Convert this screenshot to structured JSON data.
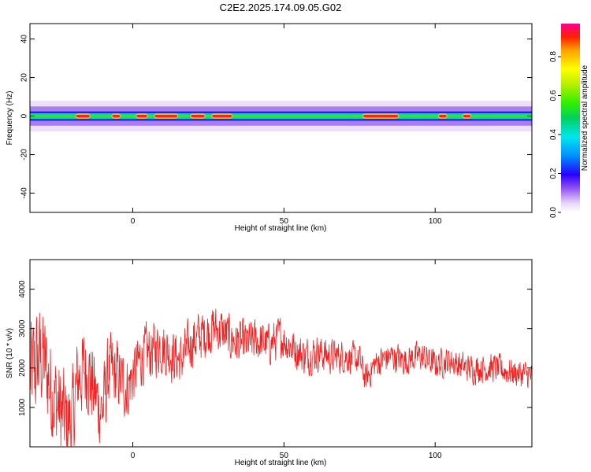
{
  "title": "C2E2.2025.174.09.05.G02",
  "chart_data": [
    {
      "type": "heatmap",
      "xlabel": "Height of straight line (km)",
      "ylabel": "Frequency (Hz)",
      "xlim": [
        -34,
        132
      ],
      "ylim": [
        -50,
        48
      ],
      "xticks": [
        0,
        50,
        100
      ],
      "yticks": [
        -40,
        -20,
        0,
        20,
        40
      ],
      "colorbar": {
        "label": "Normalized spectral amplitude",
        "range": [
          0,
          0.97
        ],
        "ticks": [
          0.0,
          0.2,
          0.4,
          0.6,
          0.8
        ]
      },
      "band": {
        "center_hz": 0,
        "core_halfwidth_hz": 1.5,
        "outer_halfwidth_hz": 5,
        "peak_segments_km": [
          [
            -19,
            -14
          ],
          [
            -7,
            -4
          ],
          [
            1,
            5
          ],
          [
            7,
            15
          ],
          [
            19,
            24
          ],
          [
            26,
            33
          ],
          [
            76,
            88
          ],
          [
            101,
            104
          ],
          [
            109,
            112
          ]
        ]
      }
    },
    {
      "type": "line",
      "xlabel": "Height of straight line (km)",
      "ylabel": "SNR (10 * v/v)",
      "xlim": [
        -34,
        132
      ],
      "ylim": [
        0,
        4750
      ],
      "xticks": [
        0,
        50,
        100
      ],
      "yticks": [
        1000,
        2000,
        3000,
        4000
      ],
      "color": "#ee2222",
      "trend": {
        "x": [
          -34,
          -30,
          -27,
          -24,
          -22,
          -20,
          -18,
          -15,
          -12,
          -10,
          -8,
          -5,
          -2,
          0,
          3,
          6,
          9,
          12,
          16,
          20,
          24,
          27,
          30,
          33,
          37,
          41,
          45,
          49,
          53,
          57,
          61,
          65,
          70,
          75,
          77,
          80,
          85,
          90,
          95,
          100,
          105,
          110,
          115,
          120,
          125,
          132
        ],
        "y": [
          1800,
          2300,
          1500,
          900,
          600,
          700,
          1800,
          2000,
          1200,
          900,
          1900,
          1800,
          1500,
          1800,
          2300,
          2400,
          2600,
          2400,
          2200,
          2700,
          2900,
          3000,
          2900,
          2700,
          2600,
          2700,
          2600,
          2800,
          2500,
          2300,
          2400,
          2300,
          2300,
          2200,
          1700,
          2100,
          2300,
          2200,
          2300,
          2100,
          2200,
          2000,
          2000,
          2000,
          1900,
          1800
        ]
      },
      "noise_amplitude": {
        "x": [
          -34,
          -20,
          -10,
          0,
          20,
          40,
          60,
          75,
          132
        ],
        "y": [
          1700,
          1400,
          1200,
          900,
          750,
          650,
          550,
          450,
          420
        ]
      }
    }
  ]
}
